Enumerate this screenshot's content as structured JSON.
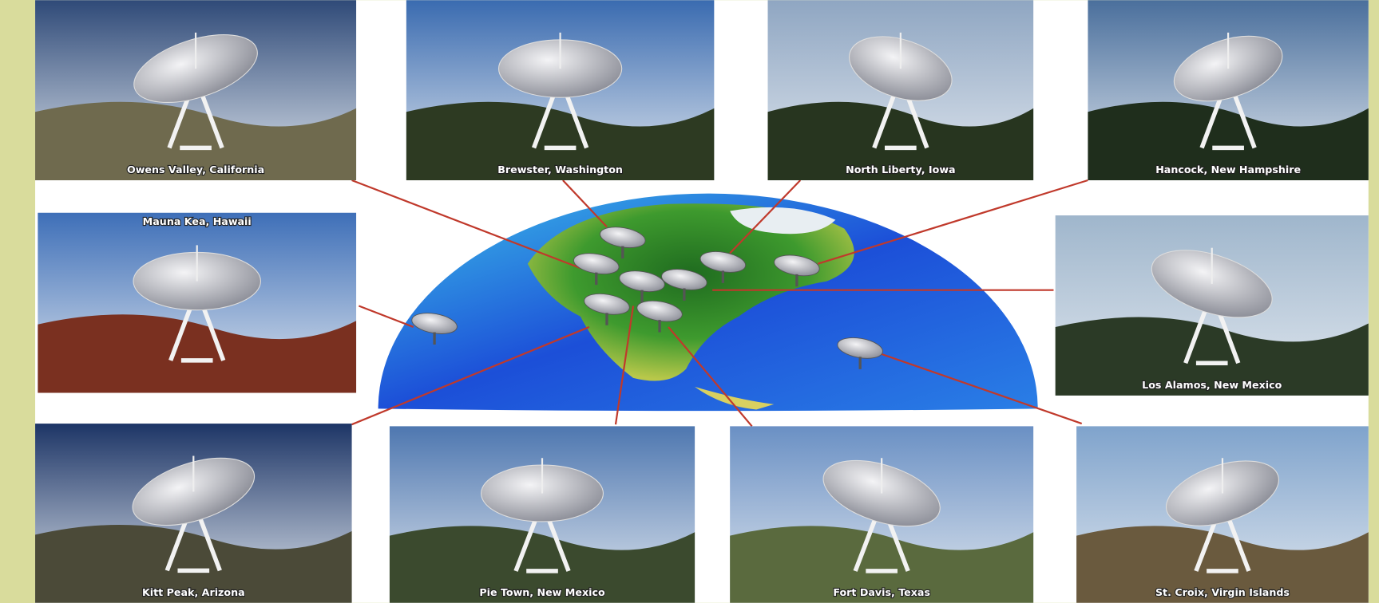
{
  "sites": [
    {
      "label": "Owens Valley, California"
    },
    {
      "label": "Brewster, Washington"
    },
    {
      "label": "North Liberty, Iowa"
    },
    {
      "label": "Hancock, New Hampshire"
    },
    {
      "label": "Mauna Kea, Hawaii"
    },
    {
      "label": "Los Alamos, New Mexico"
    },
    {
      "label": "Kitt Peak, Arizona"
    },
    {
      "label": "Pie Town, New Mexico"
    },
    {
      "label": "Fort Davis, Texas"
    },
    {
      "label": "St. Croix, Virgin Islands"
    }
  ]
}
